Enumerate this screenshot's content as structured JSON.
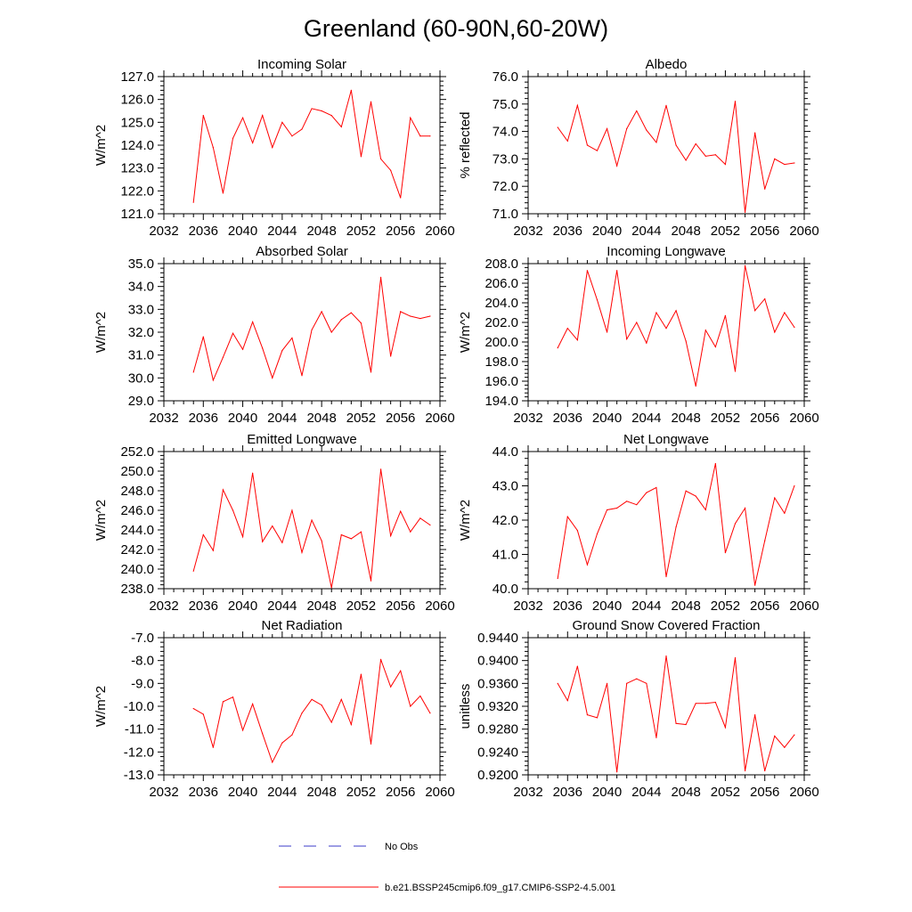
{
  "title": "Greenland (60-90N,60-20W)",
  "legend": {
    "obs_label": "No Obs",
    "obs_color": "#3b3bc8",
    "model_label": "b.e21.BSSP245cmip6.f09_g17.CMIP6-SSP2-4.5.001",
    "model_color": "#ff0000"
  },
  "chart_data": [
    {
      "type": "line",
      "title": "Incoming Solar",
      "ylabel": "W/m^2",
      "xlim": [
        2032,
        2060
      ],
      "ylim": [
        121.0,
        127.0
      ],
      "xticks": [
        "2032",
        "2036",
        "2040",
        "2044",
        "2048",
        "2052",
        "2056",
        "2060"
      ],
      "yticks": [
        "121.0",
        "122.0",
        "123.0",
        "124.0",
        "125.0",
        "126.0",
        "127.0"
      ],
      "x": [
        2035,
        2036,
        2037,
        2038,
        2039,
        2040,
        2041,
        2042,
        2043,
        2044,
        2045,
        2046,
        2047,
        2048,
        2049,
        2050,
        2051,
        2052,
        2053,
        2054,
        2055,
        2056,
        2057,
        2058,
        2059
      ],
      "series": [
        {
          "name": "b.e21.BSSP245cmip6.f09_g17.CMIP6-SSP2-4.5.001",
          "values": [
            121.5,
            125.3,
            123.9,
            121.9,
            124.3,
            125.2,
            124.1,
            125.3,
            123.9,
            125.0,
            124.4,
            124.7,
            125.6,
            125.5,
            125.3,
            124.8,
            126.4,
            123.5,
            125.9,
            123.4,
            122.9,
            121.7,
            125.2,
            124.4,
            124.4
          ]
        }
      ]
    },
    {
      "type": "line",
      "title": "Albedo",
      "ylabel": "% reflected",
      "xlim": [
        2032,
        2060
      ],
      "ylim": [
        71.0,
        76.0
      ],
      "xticks": [
        "2032",
        "2036",
        "2040",
        "2044",
        "2048",
        "2052",
        "2056",
        "2060"
      ],
      "yticks": [
        "71.0",
        "72.0",
        "73.0",
        "74.0",
        "75.0",
        "76.0"
      ],
      "x": [
        2035,
        2036,
        2037,
        2038,
        2039,
        2040,
        2041,
        2042,
        2043,
        2044,
        2045,
        2046,
        2047,
        2048,
        2049,
        2050,
        2051,
        2052,
        2053,
        2054,
        2055,
        2056,
        2057,
        2058,
        2059
      ],
      "series": [
        {
          "name": "b.e21.BSSP245cmip6.f09_g17.CMIP6-SSP2-4.5.001",
          "values": [
            74.15,
            73.65,
            74.95,
            73.5,
            73.3,
            74.1,
            72.75,
            74.1,
            74.75,
            74.05,
            73.6,
            74.95,
            73.5,
            72.95,
            73.55,
            73.1,
            73.15,
            72.8,
            75.1,
            71.05,
            73.95,
            71.9,
            73.0,
            72.8,
            72.85
          ]
        }
      ]
    },
    {
      "type": "line",
      "title": "Absorbed Solar",
      "ylabel": "W/m^2",
      "xlim": [
        2032,
        2060
      ],
      "ylim": [
        29.0,
        35.0
      ],
      "xticks": [
        "2032",
        "2036",
        "2040",
        "2044",
        "2048",
        "2052",
        "2056",
        "2060"
      ],
      "yticks": [
        "29.0",
        "30.0",
        "31.0",
        "32.0",
        "33.0",
        "34.0",
        "35.0"
      ],
      "x": [
        2035,
        2036,
        2037,
        2038,
        2039,
        2040,
        2041,
        2042,
        2043,
        2044,
        2045,
        2046,
        2047,
        2048,
        2049,
        2050,
        2051,
        2052,
        2053,
        2054,
        2055,
        2056,
        2057,
        2058,
        2059
      ],
      "series": [
        {
          "name": "b.e21.BSSP245cmip6.f09_g17.CMIP6-SSP2-4.5.001",
          "values": [
            30.25,
            31.8,
            29.9,
            30.9,
            31.95,
            31.25,
            32.45,
            31.3,
            30.0,
            31.2,
            31.75,
            30.1,
            32.1,
            32.9,
            32.0,
            32.55,
            32.85,
            32.4,
            30.25,
            34.4,
            30.95,
            32.9,
            32.7,
            32.6,
            32.7
          ]
        }
      ]
    },
    {
      "type": "line",
      "title": "Incoming Longwave",
      "ylabel": "W/m^2",
      "xlim": [
        2032,
        2060
      ],
      "ylim": [
        194.0,
        208.0
      ],
      "xticks": [
        "2032",
        "2036",
        "2040",
        "2044",
        "2048",
        "2052",
        "2056",
        "2060"
      ],
      "yticks": [
        "194.0",
        "196.0",
        "198.0",
        "200.0",
        "202.0",
        "204.0",
        "206.0",
        "208.0"
      ],
      "x": [
        2035,
        2036,
        2037,
        2038,
        2039,
        2040,
        2041,
        2042,
        2043,
        2044,
        2045,
        2046,
        2047,
        2048,
        2049,
        2050,
        2051,
        2052,
        2053,
        2054,
        2055,
        2056,
        2057,
        2058,
        2059
      ],
      "series": [
        {
          "name": "b.e21.BSSP245cmip6.f09_g17.CMIP6-SSP2-4.5.001",
          "values": [
            199.4,
            201.4,
            200.2,
            207.3,
            204.3,
            201.0,
            207.3,
            200.3,
            202.0,
            199.9,
            203.0,
            201.4,
            203.2,
            200.1,
            195.5,
            201.2,
            199.5,
            202.7,
            197.0,
            207.8,
            203.2,
            204.4,
            201.0,
            203.0,
            201.5
          ]
        }
      ]
    },
    {
      "type": "line",
      "title": "Emitted Longwave",
      "ylabel": "W/m^2",
      "xlim": [
        2032,
        2060
      ],
      "ylim": [
        238.0,
        252.0
      ],
      "xticks": [
        "2032",
        "2036",
        "2040",
        "2044",
        "2048",
        "2052",
        "2056",
        "2060"
      ],
      "yticks": [
        "238.0",
        "240.0",
        "242.0",
        "244.0",
        "246.0",
        "248.0",
        "250.0",
        "252.0"
      ],
      "x": [
        2035,
        2036,
        2037,
        2038,
        2039,
        2040,
        2041,
        2042,
        2043,
        2044,
        2045,
        2046,
        2047,
        2048,
        2049,
        2050,
        2051,
        2052,
        2053,
        2054,
        2055,
        2056,
        2057,
        2058,
        2059
      ],
      "series": [
        {
          "name": "b.e21.BSSP245cmip6.f09_g17.CMIP6-SSP2-4.5.001",
          "values": [
            239.8,
            243.5,
            241.9,
            248.1,
            246.0,
            243.3,
            249.8,
            242.8,
            244.4,
            242.7,
            246.0,
            241.7,
            245.0,
            242.9,
            238.1,
            243.5,
            243.1,
            243.8,
            238.8,
            250.2,
            243.4,
            245.9,
            243.8,
            245.2,
            244.5
          ]
        }
      ]
    },
    {
      "type": "line",
      "title": "Net Longwave",
      "ylabel": "W/m^2",
      "xlim": [
        2032,
        2060
      ],
      "ylim": [
        40.0,
        44.0
      ],
      "xticks": [
        "2032",
        "2036",
        "2040",
        "2044",
        "2048",
        "2052",
        "2056",
        "2060"
      ],
      "yticks": [
        "40.0",
        "41.0",
        "42.0",
        "43.0",
        "44.0"
      ],
      "x": [
        2035,
        2036,
        2037,
        2038,
        2039,
        2040,
        2041,
        2042,
        2043,
        2044,
        2045,
        2046,
        2047,
        2048,
        2049,
        2050,
        2051,
        2052,
        2053,
        2054,
        2055,
        2056,
        2057,
        2058,
        2059
      ],
      "series": [
        {
          "name": "b.e21.BSSP245cmip6.f09_g17.CMIP6-SSP2-4.5.001",
          "values": [
            40.3,
            42.1,
            41.7,
            40.7,
            41.6,
            42.3,
            42.35,
            42.55,
            42.45,
            42.8,
            42.95,
            40.35,
            41.8,
            42.85,
            42.7,
            42.3,
            43.65,
            41.05,
            41.9,
            42.35,
            40.1,
            41.4,
            42.65,
            42.2,
            43.0
          ]
        }
      ]
    },
    {
      "type": "line",
      "title": "Net Radiation",
      "ylabel": "W/m^2",
      "xlim": [
        2032,
        2060
      ],
      "ylim": [
        -13.0,
        -7.0
      ],
      "xticks": [
        "2032",
        "2036",
        "2040",
        "2044",
        "2048",
        "2052",
        "2056",
        "2060"
      ],
      "yticks": [
        "-13.0",
        "-12.0",
        "-11.0",
        "-10.0",
        "-9.0",
        "-8.0",
        "-7.0"
      ],
      "x": [
        2035,
        2036,
        2037,
        2038,
        2039,
        2040,
        2041,
        2042,
        2043,
        2044,
        2045,
        2046,
        2047,
        2048,
        2049,
        2050,
        2051,
        2052,
        2053,
        2054,
        2055,
        2056,
        2057,
        2058,
        2059
      ],
      "series": [
        {
          "name": "b.e21.BSSP245cmip6.f09_g17.CMIP6-SSP2-4.5.001",
          "values": [
            -10.1,
            -10.35,
            -11.8,
            -9.8,
            -9.6,
            -11.05,
            -9.9,
            -11.2,
            -12.45,
            -11.6,
            -11.25,
            -10.3,
            -9.7,
            -9.95,
            -10.7,
            -9.7,
            -10.8,
            -8.6,
            -11.65,
            -7.95,
            -9.15,
            -8.45,
            -10.0,
            -9.55,
            -10.3
          ]
        }
      ]
    },
    {
      "type": "line",
      "title": "Ground Snow Covered Fraction",
      "ylabel": "unitless",
      "xlim": [
        2032,
        2060
      ],
      "ylim": [
        0.92,
        0.944
      ],
      "xticks": [
        "2032",
        "2036",
        "2040",
        "2044",
        "2048",
        "2052",
        "2056",
        "2060"
      ],
      "yticks": [
        "0.9200",
        "0.9240",
        "0.9280",
        "0.9320",
        "0.9360",
        "0.9400",
        "0.9440"
      ],
      "x": [
        2035,
        2036,
        2037,
        2038,
        2039,
        2040,
        2041,
        2042,
        2043,
        2044,
        2045,
        2046,
        2047,
        2048,
        2049,
        2050,
        2051,
        2052,
        2053,
        2054,
        2055,
        2056,
        2057,
        2058,
        2059
      ],
      "series": [
        {
          "name": "b.e21.BSSP245cmip6.f09_g17.CMIP6-SSP2-4.5.001",
          "values": [
            0.936,
            0.933,
            0.939,
            0.9305,
            0.93,
            0.936,
            0.9205,
            0.936,
            0.9368,
            0.936,
            0.9265,
            0.9408,
            0.929,
            0.9288,
            0.9325,
            0.9325,
            0.9327,
            0.9283,
            0.9405,
            0.9207,
            0.9305,
            0.9207,
            0.9268,
            0.9248,
            0.927
          ]
        }
      ]
    }
  ]
}
